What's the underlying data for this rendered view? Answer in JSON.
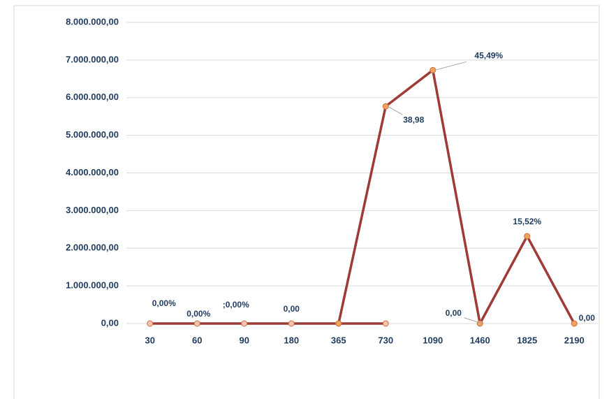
{
  "chart_data": {
    "type": "line",
    "categories": [
      "30",
      "60",
      "90",
      "180",
      "365",
      "730",
      "1090",
      "1460",
      "1825",
      "2190"
    ],
    "series": [
      {
        "color": "#9e3b36",
        "marker_color": "#f6c3b3",
        "values": [
          0,
          0,
          0,
          0,
          0,
          0,
          null,
          null,
          null,
          null
        ]
      },
      {
        "color": "#9e3b36",
        "marker_color": "#f2a05c",
        "values": [
          null,
          null,
          null,
          null,
          0,
          5770000,
          6730000,
          0,
          2320000,
          0
        ]
      }
    ],
    "annotations": [
      "0,00%",
      "0,00%",
      ";0,00%",
      "0,00",
      null,
      "38,98",
      "45,49%",
      "0,00",
      "15,52%",
      "0,00"
    ],
    "ylim": [
      0,
      8000000
    ],
    "yticks": [
      {
        "value": 0,
        "label": "0,00"
      },
      {
        "value": 1000000,
        "label": "1.000.000,00"
      },
      {
        "value": 2000000,
        "label": "2.000.000,00"
      },
      {
        "value": 3000000,
        "label": "3.000.000,00"
      },
      {
        "value": 4000000,
        "label": "4.000.000,00"
      },
      {
        "value": 5000000,
        "label": "5.000.000,00"
      },
      {
        "value": 6000000,
        "label": "6.000.000,00"
      },
      {
        "value": 7000000,
        "label": "7.000.000,00"
      },
      {
        "value": 8000000,
        "label": "8.000.000,00"
      }
    ],
    "grid": true
  }
}
